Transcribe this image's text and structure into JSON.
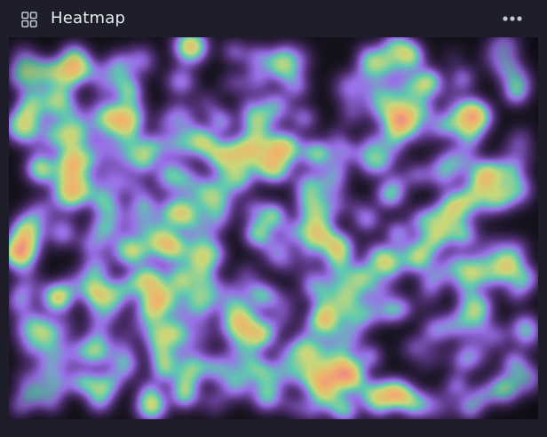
{
  "panel": {
    "title": "Heatmap",
    "icons": {
      "layout": "grid-icon",
      "more": "more-horizontal-icon"
    }
  },
  "colors": {
    "background": "#1d1e29",
    "title_text": "#e9ebf2",
    "icon": "#c4c7d3",
    "heat_scale": [
      "#14121d",
      "#7a52c8",
      "#9a6fe8",
      "#5fc9b0",
      "#c6d87a",
      "#f0b66a",
      "#ee7e8e"
    ]
  },
  "chart_data": {
    "type": "heatmap",
    "title": "",
    "xlabel": "",
    "ylabel": "",
    "legend": "none",
    "grid": false
  }
}
